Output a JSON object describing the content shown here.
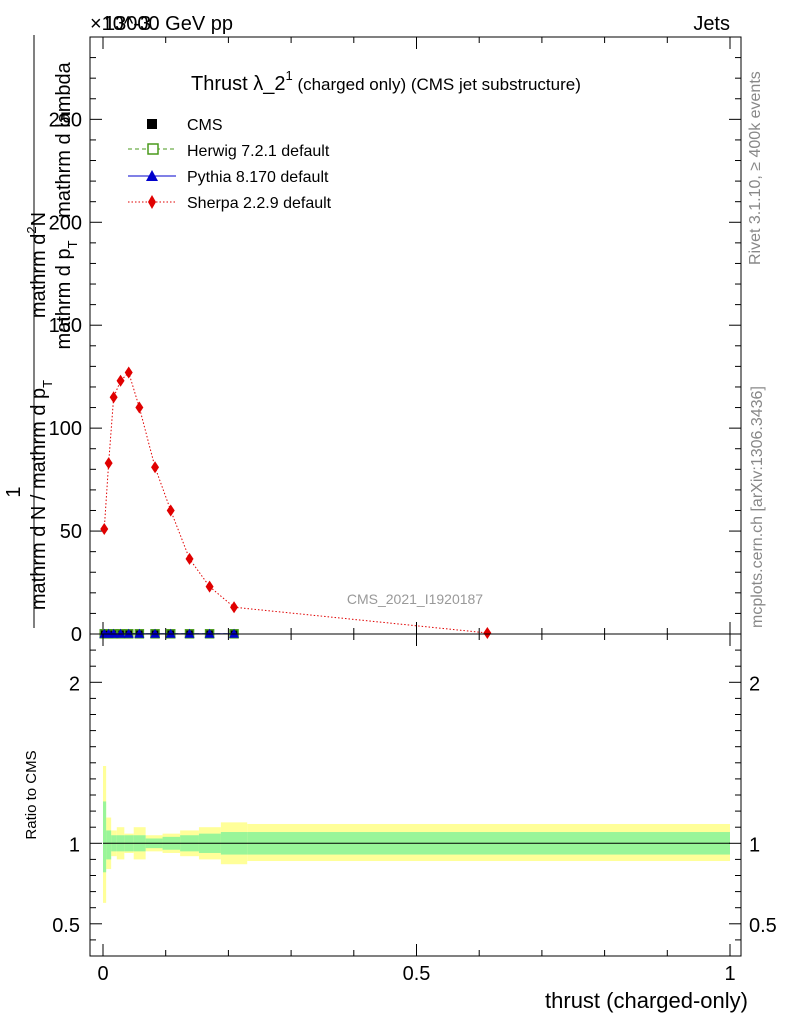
{
  "header": {
    "exponent_label": "×10^-3",
    "energy_label": "13000 GeV pp",
    "category_label": "Jets",
    "side_label_rivet": "Rivet 3.1.10, ≥ 400k events",
    "side_label_mcplots": "mcplots.cern.ch [arXiv:1306.3436]",
    "analysis_id": "CMS_2021_I1920187"
  },
  "chart_data": [
    {
      "type": "line",
      "title": "Thrust λ_2^1 (charged only) (CMS jet substructure)",
      "title_main": "Thrust λ_2",
      "title_sup": "1",
      "title_rest": " (charged only) (CMS jet substructure)",
      "xlabel": "",
      "ylabel": "1 / (mathrm d N / mathrm d p_T) · mathrm d^2N / (mathrm d p_T mathrm d lambda)",
      "ylabel_numer": "1",
      "ylabel_denom": "mathrm d N / mathrm d p",
      "ylabel_denom_sub": "T",
      "ylabel_d2n": "mathrm d",
      "ylabel_d2n_sup": "2",
      "ylabel_d2n_rest": "N",
      "ylabel_dpt": "mathrm d p",
      "ylabel_dpt_sub": "T",
      "ylabel_dlam": "mathrm d lambda",
      "xlim": [
        0,
        1
      ],
      "ylim": [
        0,
        290
      ],
      "y_ticks": [
        0,
        50,
        100,
        150,
        200,
        250
      ],
      "y_tick_labels": [
        "0",
        "50",
        "100",
        "150",
        "200",
        "250"
      ],
      "legend_position": "top-left",
      "series": [
        {
          "name": "CMS",
          "style": "markers",
          "color": "#000000",
          "x": [
            0.002,
            0.009,
            0.017,
            0.028,
            0.041,
            0.058,
            0.083,
            0.108,
            0.138,
            0.17,
            0.209
          ],
          "values": [
            0.1,
            0.1,
            0.1,
            0.1,
            0.1,
            0.1,
            0.1,
            0.1,
            0.1,
            0.1,
            0.1
          ]
        },
        {
          "name": "Herwig 7.2.1 default",
          "style": "dashed-open-square",
          "color": "#4a9a1c",
          "x": [
            0.002,
            0.009,
            0.017,
            0.028,
            0.041,
            0.058,
            0.083,
            0.108,
            0.138,
            0.17,
            0.209
          ],
          "values": [
            0.1,
            0.1,
            0.1,
            0.1,
            0.1,
            0.1,
            0.1,
            0.1,
            0.1,
            0.1,
            0.1
          ]
        },
        {
          "name": "Pythia 8.170 default",
          "style": "solid-triangle",
          "color": "#0000cc",
          "x": [
            0.002,
            0.009,
            0.017,
            0.028,
            0.041,
            0.058,
            0.083,
            0.108,
            0.138,
            0.17,
            0.209
          ],
          "values": [
            0.1,
            0.1,
            0.1,
            0.1,
            0.1,
            0.1,
            0.1,
            0.1,
            0.1,
            0.1,
            0.1
          ]
        },
        {
          "name": "Sherpa 2.2.9 default",
          "style": "dotted-diamond",
          "color": "#e00000",
          "x": [
            0.002,
            0.009,
            0.017,
            0.028,
            0.041,
            0.058,
            0.083,
            0.108,
            0.138,
            0.17,
            0.209,
            0.613
          ],
          "values": [
            51,
            83,
            115,
            123,
            127,
            110,
            81,
            60,
            36.5,
            23,
            13,
            0.5
          ]
        }
      ]
    },
    {
      "type": "line",
      "title": "",
      "xlabel": "thrust (charged-only)",
      "ylabel": "Ratio to CMS",
      "xlim": [
        0,
        1
      ],
      "ylim": [
        0.3,
        2.3
      ],
      "x_ticks": [
        0,
        0.5,
        1
      ],
      "x_tick_labels": [
        "0",
        "0.5",
        "1"
      ],
      "y_ticks": [
        0.5,
        1,
        2
      ],
      "y_tick_labels": [
        "0.5",
        "1",
        "2"
      ],
      "reference_line": 1,
      "bin_edges": [
        0,
        0.005,
        0.013,
        0.022,
        0.034,
        0.049,
        0.068,
        0.095,
        0.123,
        0.153,
        0.188,
        0.23,
        1.0
      ],
      "green_band": [
        [
          0.82,
          1.26
        ],
        [
          0.9,
          1.08
        ],
        [
          0.95,
          1.05
        ],
        [
          0.95,
          1.05
        ],
        [
          0.95,
          1.05
        ],
        [
          0.95,
          1.05
        ],
        [
          0.97,
          1.03
        ],
        [
          0.96,
          1.04
        ],
        [
          0.95,
          1.05
        ],
        [
          0.94,
          1.06
        ],
        [
          0.93,
          1.07
        ],
        [
          0.93,
          1.07
        ]
      ],
      "yellow_band": [
        [
          0.63,
          1.48
        ],
        [
          0.84,
          1.16
        ],
        [
          0.92,
          1.08
        ],
        [
          0.9,
          1.1
        ],
        [
          0.94,
          1.06
        ],
        [
          0.9,
          1.1
        ],
        [
          0.95,
          1.05
        ],
        [
          0.94,
          1.06
        ],
        [
          0.92,
          1.08
        ],
        [
          0.9,
          1.1
        ],
        [
          0.87,
          1.13
        ],
        [
          0.89,
          1.12
        ]
      ]
    }
  ]
}
